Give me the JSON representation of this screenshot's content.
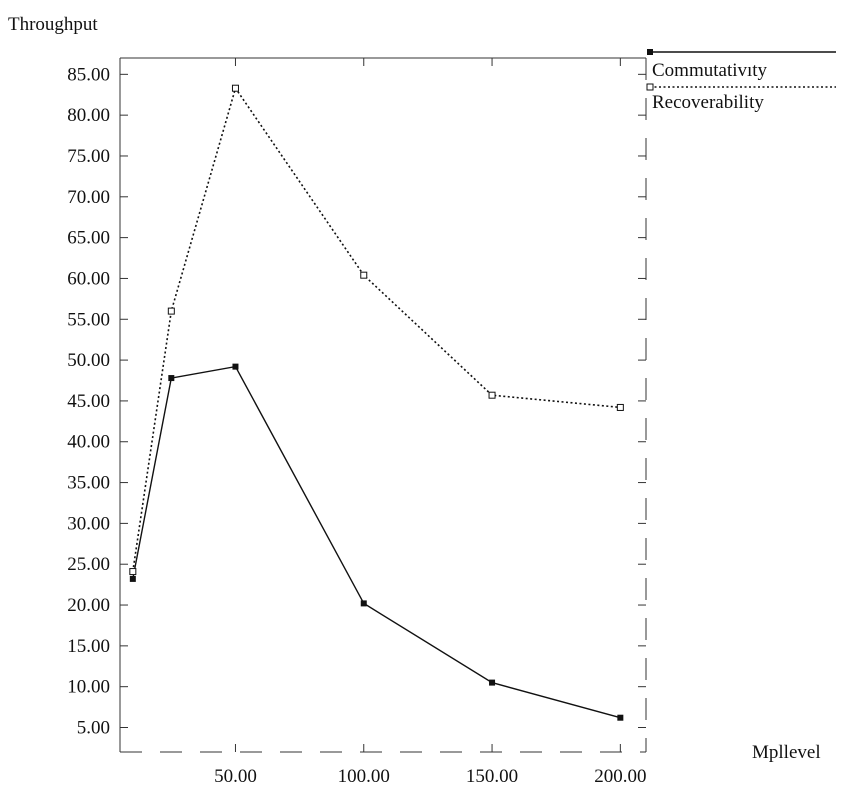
{
  "chart_data": {
    "type": "line",
    "ylabel": "Throughput",
    "xlabel": "Mpllevel",
    "xlim": [
      5,
      210
    ],
    "ylim": [
      2,
      87
    ],
    "x_ticks": [
      50,
      100,
      150,
      200
    ],
    "x_tick_labels": [
      "50.00",
      "100.00",
      "150.00",
      "200.00"
    ],
    "y_ticks": [
      5,
      10,
      15,
      20,
      25,
      30,
      35,
      40,
      45,
      50,
      55,
      60,
      65,
      70,
      75,
      80,
      85
    ],
    "y_tick_labels": [
      "5.00",
      "10.00",
      "15.00",
      "20.00",
      "25.00",
      "30.00",
      "35.00",
      "40.00",
      "45.00",
      "50.00",
      "55.00",
      "60.00",
      "65.00",
      "70.00",
      "75.00",
      "80.00",
      "85.00"
    ],
    "legend": "top-right",
    "grid": false,
    "series": [
      {
        "name": "Commutativity",
        "label": "Commutativıty",
        "line": "solid",
        "marker": "filled-square",
        "color": "#111111",
        "x": [
          10,
          25,
          50,
          100,
          150,
          200
        ],
        "y": [
          23.2,
          47.8,
          49.2,
          20.2,
          10.5,
          6.2
        ]
      },
      {
        "name": "Recoverability",
        "label": "Recoverability",
        "line": "dotted",
        "marker": "open-square",
        "color": "#111111",
        "x": [
          10,
          25,
          50,
          100,
          150,
          200
        ],
        "y": [
          24.1,
          56.0,
          83.3,
          60.4,
          45.7,
          44.2
        ]
      }
    ]
  }
}
